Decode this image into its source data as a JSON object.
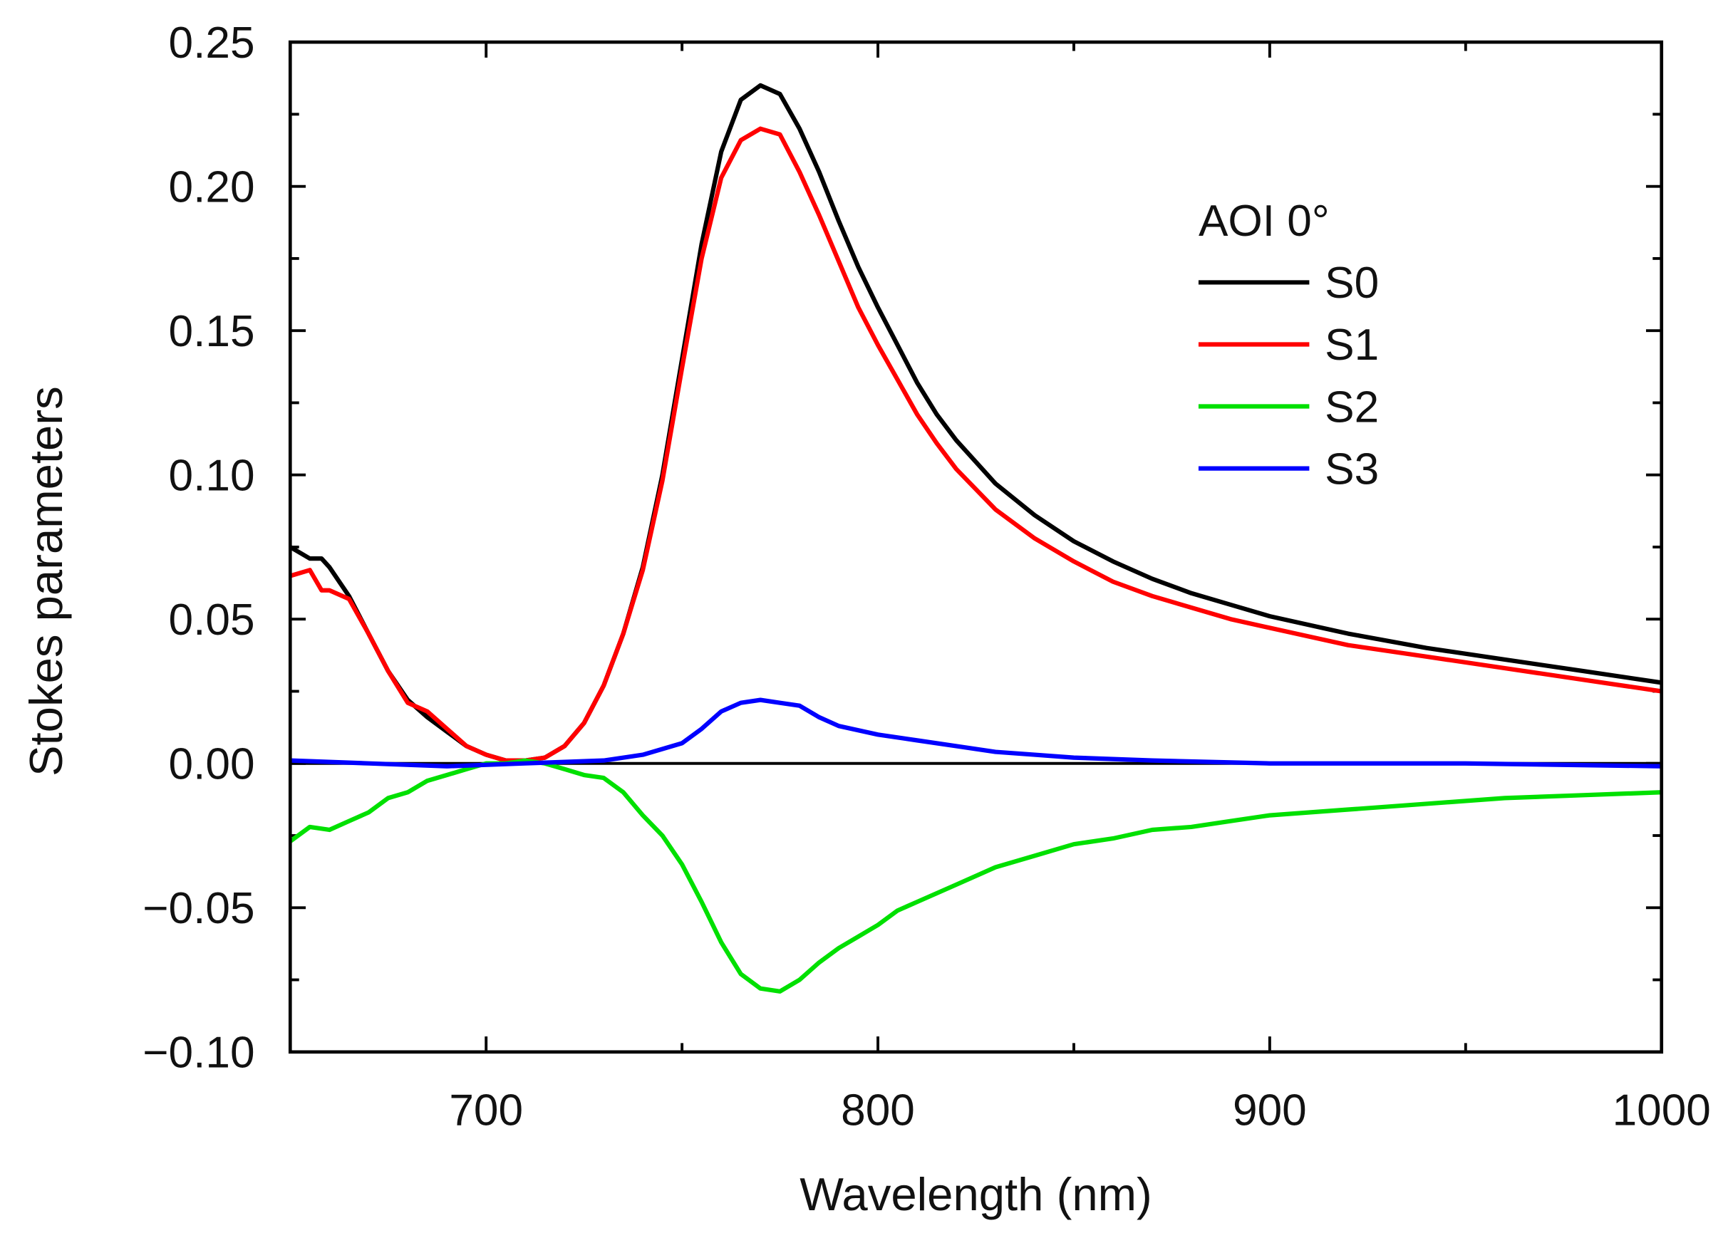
{
  "chart_data": {
    "type": "line",
    "title": "",
    "xlabel": "Wavelength (nm)",
    "ylabel": "Stokes parameters",
    "xlim": [
      650,
      1000
    ],
    "ylim": [
      -0.1,
      0.25
    ],
    "xticks": [
      700,
      800,
      900,
      1000
    ],
    "xtick_labels": [
      "700",
      "800",
      "900",
      "1000"
    ],
    "yticks": [
      -0.1,
      -0.05,
      0.0,
      0.05,
      0.1,
      0.15,
      0.2,
      0.25
    ],
    "ytick_labels": [
      "−0.10",
      "−0.05",
      "0.00",
      "0.05",
      "0.10",
      "0.15",
      "0.20",
      "0.25"
    ],
    "grid": false,
    "legend": {
      "title": "AOI 0°",
      "placement": "upper-right"
    },
    "series": [
      {
        "name": "S0",
        "color": "#000000",
        "x": [
          650,
          655,
          658,
          660,
          665,
          670,
          675,
          680,
          685,
          690,
          695,
          700,
          705,
          710,
          715,
          720,
          725,
          730,
          735,
          740,
          745,
          750,
          755,
          760,
          765,
          770,
          775,
          780,
          785,
          790,
          795,
          800,
          805,
          810,
          815,
          820,
          830,
          840,
          850,
          860,
          870,
          880,
          890,
          900,
          920,
          940,
          960,
          980,
          1000
        ],
        "y": [
          0.075,
          0.071,
          0.071,
          0.068,
          0.058,
          0.045,
          0.032,
          0.022,
          0.016,
          0.011,
          0.006,
          0.003,
          0.001,
          0.001,
          0.002,
          0.006,
          0.014,
          0.027,
          0.045,
          0.068,
          0.1,
          0.14,
          0.18,
          0.212,
          0.23,
          0.235,
          0.232,
          0.22,
          0.205,
          0.188,
          0.172,
          0.158,
          0.145,
          0.132,
          0.121,
          0.112,
          0.097,
          0.086,
          0.077,
          0.07,
          0.064,
          0.059,
          0.055,
          0.051,
          0.045,
          0.04,
          0.036,
          0.032,
          0.028
        ]
      },
      {
        "name": "S1",
        "color": "#ff0000",
        "x": [
          650,
          655,
          658,
          660,
          665,
          670,
          675,
          680,
          685,
          690,
          695,
          700,
          705,
          710,
          715,
          720,
          725,
          730,
          735,
          740,
          745,
          750,
          755,
          760,
          765,
          770,
          775,
          780,
          785,
          790,
          795,
          800,
          805,
          810,
          815,
          820,
          830,
          840,
          850,
          860,
          870,
          880,
          890,
          900,
          920,
          940,
          960,
          980,
          1000
        ],
        "y": [
          0.065,
          0.067,
          0.06,
          0.06,
          0.057,
          0.045,
          0.032,
          0.021,
          0.018,
          0.012,
          0.006,
          0.003,
          0.001,
          0.001,
          0.002,
          0.006,
          0.014,
          0.027,
          0.045,
          0.067,
          0.098,
          0.137,
          0.175,
          0.203,
          0.216,
          0.22,
          0.218,
          0.205,
          0.19,
          0.174,
          0.158,
          0.145,
          0.133,
          0.121,
          0.111,
          0.102,
          0.088,
          0.078,
          0.07,
          0.063,
          0.058,
          0.054,
          0.05,
          0.047,
          0.041,
          0.037,
          0.033,
          0.029,
          0.025
        ]
      },
      {
        "name": "S2",
        "color": "#00e000",
        "x": [
          650,
          655,
          660,
          665,
          670,
          675,
          680,
          685,
          690,
          695,
          700,
          705,
          710,
          715,
          720,
          725,
          730,
          735,
          740,
          745,
          750,
          755,
          760,
          765,
          770,
          775,
          780,
          785,
          790,
          795,
          800,
          805,
          810,
          815,
          820,
          830,
          840,
          850,
          860,
          870,
          880,
          890,
          900,
          920,
          940,
          960,
          980,
          1000
        ],
        "y": [
          -0.027,
          -0.022,
          -0.023,
          -0.02,
          -0.017,
          -0.012,
          -0.01,
          -0.006,
          -0.004,
          -0.002,
          0.0,
          0.0,
          0.001,
          0.0,
          -0.002,
          -0.004,
          -0.005,
          -0.01,
          -0.018,
          -0.025,
          -0.035,
          -0.048,
          -0.062,
          -0.073,
          -0.078,
          -0.079,
          -0.075,
          -0.069,
          -0.064,
          -0.06,
          -0.056,
          -0.051,
          -0.048,
          -0.045,
          -0.042,
          -0.036,
          -0.032,
          -0.028,
          -0.026,
          -0.023,
          -0.022,
          -0.02,
          -0.018,
          -0.016,
          -0.014,
          -0.012,
          -0.011,
          -0.01
        ]
      },
      {
        "name": "S3",
        "color": "#0000ff",
        "x": [
          650,
          670,
          690,
          710,
          730,
          740,
          750,
          755,
          760,
          765,
          770,
          775,
          780,
          785,
          790,
          800,
          810,
          820,
          830,
          840,
          850,
          870,
          900,
          950,
          1000
        ],
        "y": [
          0.001,
          0.0,
          -0.001,
          0.0,
          0.001,
          0.003,
          0.007,
          0.012,
          0.018,
          0.021,
          0.022,
          0.021,
          0.02,
          0.016,
          0.013,
          0.01,
          0.008,
          0.006,
          0.004,
          0.003,
          0.002,
          0.001,
          0.0,
          0.0,
          -0.001
        ]
      }
    ]
  }
}
